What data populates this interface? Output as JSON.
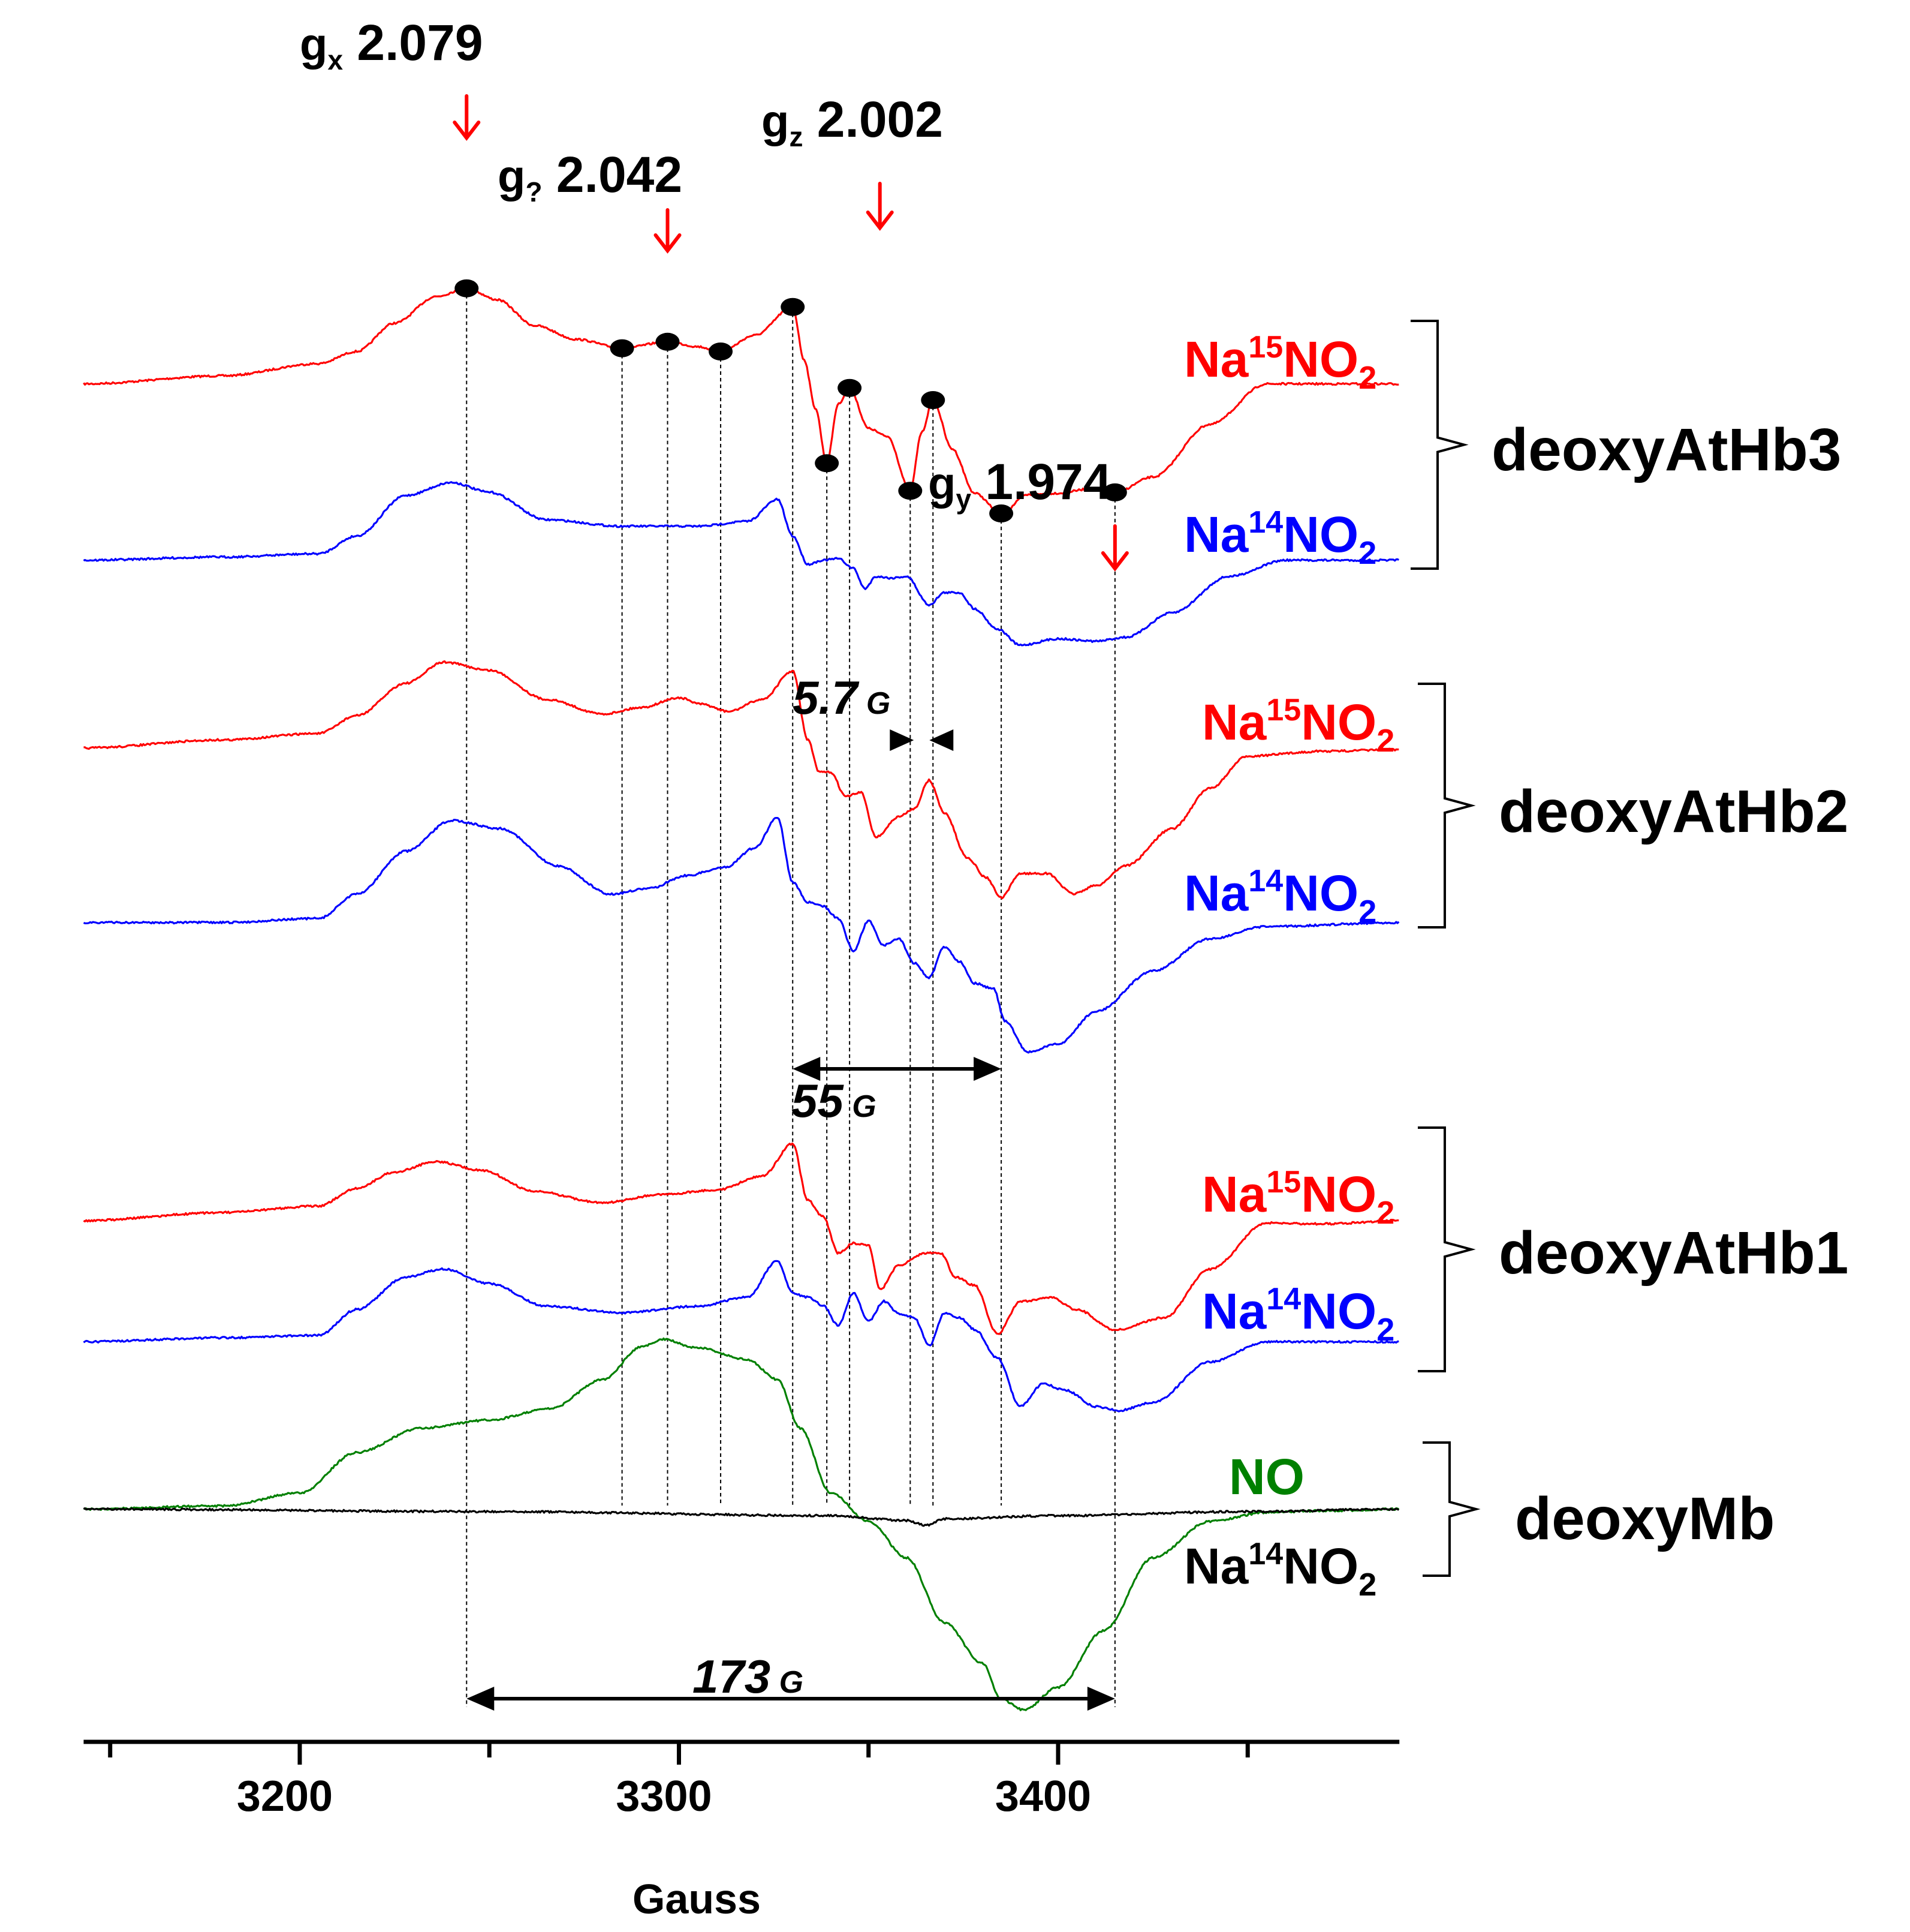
{
  "chart_data": {
    "type": "line",
    "title": "",
    "xlabel": "Gauss",
    "ylabel": "",
    "xlim": [
      3143,
      3490
    ],
    "xticks_major": [
      3200,
      3300,
      3400
    ],
    "xticks_minor": [
      3150,
      3250,
      3350,
      3450
    ],
    "colors": {
      "na15": "#ff0000",
      "na14": "#0000ff",
      "no": "#008000",
      "black": "#000000",
      "arrow": "#ff0000"
    },
    "g_markers": [
      {
        "sym": "g",
        "sub": "x",
        "value": "2.079",
        "field": 3244
      },
      {
        "sym": "g",
        "sub": "?",
        "value": "2.042",
        "field": 3297
      },
      {
        "sym": "g",
        "sub": "z",
        "value": "2.002",
        "field": 3353
      },
      {
        "sym": "g",
        "sub": "y",
        "value": "1.974",
        "field": 3415
      }
    ],
    "guide_lines": [
      3244,
      3285,
      3297,
      3311,
      3330,
      3339,
      3345,
      3361,
      3367,
      3385,
      3415
    ],
    "dots": [
      [
        3244,
        118
      ],
      [
        3285,
        44
      ],
      [
        3297,
        52
      ],
      [
        3311,
        40
      ],
      [
        3330,
        95
      ],
      [
        3339,
        -98
      ],
      [
        3345,
        -5
      ],
      [
        3361,
        -132
      ],
      [
        3367,
        -20
      ],
      [
        3385,
        -160
      ],
      [
        3415,
        -134
      ]
    ],
    "spacings": [
      {
        "number": "5.7",
        "unit": "G",
        "from": 3361,
        "to": 3367
      },
      {
        "number": "55",
        "unit": "G",
        "from": 3330,
        "to": 3385
      },
      {
        "number": "173",
        "unit": "G",
        "from": 3244,
        "to": 3415
      }
    ],
    "traces": [
      {
        "id": "hb3-15",
        "name": "Na15NO2",
        "color": "red",
        "baseline": 0,
        "points": [
          [
            3143,
            0
          ],
          [
            3180,
            10
          ],
          [
            3205,
            25
          ],
          [
            3215,
            40
          ],
          [
            3225,
            75
          ],
          [
            3236,
            108
          ],
          [
            3244,
            118
          ],
          [
            3252,
            104
          ],
          [
            3262,
            72
          ],
          [
            3273,
            55
          ],
          [
            3285,
            44
          ],
          [
            3297,
            52
          ],
          [
            3305,
            46
          ],
          [
            3311,
            40
          ],
          [
            3320,
            60
          ],
          [
            3330,
            95
          ],
          [
            3333,
            30
          ],
          [
            3336,
            -30
          ],
          [
            3339,
            -98
          ],
          [
            3342,
            -25
          ],
          [
            3345,
            -5
          ],
          [
            3350,
            -55
          ],
          [
            3355,
            -65
          ],
          [
            3361,
            -132
          ],
          [
            3364,
            -60
          ],
          [
            3367,
            -20
          ],
          [
            3372,
            -80
          ],
          [
            3378,
            -135
          ],
          [
            3385,
            -160
          ],
          [
            3392,
            -137
          ],
          [
            3400,
            -135
          ],
          [
            3408,
            -130
          ],
          [
            3415,
            -134
          ],
          [
            3425,
            -115
          ],
          [
            3440,
            -50
          ],
          [
            3455,
            0
          ],
          [
            3470,
            0
          ],
          [
            3490,
            0
          ]
        ]
      },
      {
        "id": "hb3-14",
        "name": "Na14NO2",
        "color": "blue",
        "baseline": 0,
        "points": [
          [
            3143,
            0
          ],
          [
            3180,
            4
          ],
          [
            3205,
            8
          ],
          [
            3215,
            30
          ],
          [
            3228,
            80
          ],
          [
            3240,
            96
          ],
          [
            3250,
            84
          ],
          [
            3265,
            50
          ],
          [
            3285,
            42
          ],
          [
            3305,
            42
          ],
          [
            3318,
            48
          ],
          [
            3326,
            75
          ],
          [
            3330,
            30
          ],
          [
            3334,
            -5
          ],
          [
            3338,
            0
          ],
          [
            3342,
            2
          ],
          [
            3346,
            -10
          ],
          [
            3349,
            -35
          ],
          [
            3352,
            -20
          ],
          [
            3356,
            -22
          ],
          [
            3360,
            -20
          ],
          [
            3366,
            -55
          ],
          [
            3370,
            -40
          ],
          [
            3374,
            -40
          ],
          [
            3378,
            -60
          ],
          [
            3384,
            -85
          ],
          [
            3390,
            -105
          ],
          [
            3400,
            -97
          ],
          [
            3410,
            -100
          ],
          [
            3418,
            -95
          ],
          [
            3430,
            -65
          ],
          [
            3445,
            -20
          ],
          [
            3460,
            0
          ],
          [
            3475,
            0
          ],
          [
            3490,
            0
          ]
        ]
      },
      {
        "id": "hb2-15",
        "name": "Na15NO2",
        "color": "red",
        "baseline": 0,
        "points": [
          [
            3143,
            0
          ],
          [
            3180,
            10
          ],
          [
            3205,
            18
          ],
          [
            3215,
            40
          ],
          [
            3228,
            80
          ],
          [
            3238,
            106
          ],
          [
            3250,
            96
          ],
          [
            3265,
            60
          ],
          [
            3280,
            42
          ],
          [
            3290,
            50
          ],
          [
            3300,
            62
          ],
          [
            3306,
            54
          ],
          [
            3313,
            45
          ],
          [
            3322,
            60
          ],
          [
            3330,
            95
          ],
          [
            3334,
            10
          ],
          [
            3337,
            -30
          ],
          [
            3340,
            -30
          ],
          [
            3344,
            -60
          ],
          [
            3348,
            -55
          ],
          [
            3352,
            -110
          ],
          [
            3358,
            -85
          ],
          [
            3362,
            -75
          ],
          [
            3366,
            -40
          ],
          [
            3370,
            -80
          ],
          [
            3376,
            -135
          ],
          [
            3381,
            -160
          ],
          [
            3385,
            -185
          ],
          [
            3390,
            -155
          ],
          [
            3397,
            -155
          ],
          [
            3404,
            -180
          ],
          [
            3410,
            -170
          ],
          [
            3418,
            -145
          ],
          [
            3430,
            -100
          ],
          [
            3440,
            -50
          ],
          [
            3450,
            -10
          ],
          [
            3470,
            -4
          ],
          [
            3490,
            -2
          ]
        ]
      },
      {
        "id": "hb2-14",
        "name": "Na14NO2",
        "color": "blue",
        "baseline": 0,
        "points": [
          [
            3143,
            0
          ],
          [
            3180,
            0
          ],
          [
            3205,
            5
          ],
          [
            3215,
            35
          ],
          [
            3228,
            88
          ],
          [
            3240,
            126
          ],
          [
            3253,
            116
          ],
          [
            3268,
            70
          ],
          [
            3282,
            35
          ],
          [
            3292,
            42
          ],
          [
            3302,
            58
          ],
          [
            3312,
            68
          ],
          [
            3320,
            92
          ],
          [
            3326,
            130
          ],
          [
            3330,
            50
          ],
          [
            3334,
            25
          ],
          [
            3338,
            20
          ],
          [
            3342,
            5
          ],
          [
            3346,
            -35
          ],
          [
            3350,
            2
          ],
          [
            3354,
            -28
          ],
          [
            3358,
            -20
          ],
          [
            3362,
            -50
          ],
          [
            3366,
            -68
          ],
          [
            3370,
            -30
          ],
          [
            3374,
            -48
          ],
          [
            3378,
            -75
          ],
          [
            3383,
            -82
          ],
          [
            3386,
            -122
          ],
          [
            3392,
            -160
          ],
          [
            3400,
            -150
          ],
          [
            3410,
            -110
          ],
          [
            3425,
            -60
          ],
          [
            3440,
            -20
          ],
          [
            3455,
            -5
          ],
          [
            3490,
            0
          ]
        ]
      },
      {
        "id": "hb1-15",
        "name": "Na15NO2",
        "color": "red",
        "baseline": 0,
        "points": [
          [
            3143,
            0
          ],
          [
            3180,
            10
          ],
          [
            3205,
            18
          ],
          [
            3215,
            40
          ],
          [
            3225,
            60
          ],
          [
            3236,
            73
          ],
          [
            3248,
            62
          ],
          [
            3262,
            36
          ],
          [
            3280,
            22
          ],
          [
            3295,
            32
          ],
          [
            3310,
            38
          ],
          [
            3322,
            55
          ],
          [
            3330,
            95
          ],
          [
            3334,
            25
          ],
          [
            3338,
            5
          ],
          [
            3342,
            -40
          ],
          [
            3346,
            -28
          ],
          [
            3350,
            -30
          ],
          [
            3353,
            -85
          ],
          [
            3358,
            -55
          ],
          [
            3365,
            -40
          ],
          [
            3369,
            -40
          ],
          [
            3373,
            -70
          ],
          [
            3378,
            -80
          ],
          [
            3384,
            -140
          ],
          [
            3390,
            -100
          ],
          [
            3398,
            -95
          ],
          [
            3405,
            -110
          ],
          [
            3415,
            -135
          ],
          [
            3428,
            -120
          ],
          [
            3440,
            -60
          ],
          [
            3455,
            -3
          ],
          [
            3470,
            -4
          ],
          [
            3490,
            0
          ]
        ]
      },
      {
        "id": "hb1-14",
        "name": "Na14NO2",
        "color": "blue",
        "baseline": 0,
        "points": [
          [
            3143,
            0
          ],
          [
            3180,
            5
          ],
          [
            3205,
            8
          ],
          [
            3215,
            40
          ],
          [
            3228,
            80
          ],
          [
            3238,
            90
          ],
          [
            3250,
            72
          ],
          [
            3265,
            44
          ],
          [
            3285,
            36
          ],
          [
            3305,
            44
          ],
          [
            3318,
            55
          ],
          [
            3326,
            100
          ],
          [
            3330,
            60
          ],
          [
            3334,
            55
          ],
          [
            3338,
            45
          ],
          [
            3342,
            20
          ],
          [
            3346,
            60
          ],
          [
            3350,
            25
          ],
          [
            3354,
            50
          ],
          [
            3358,
            35
          ],
          [
            3362,
            30
          ],
          [
            3366,
            -5
          ],
          [
            3370,
            35
          ],
          [
            3374,
            30
          ],
          [
            3378,
            15
          ],
          [
            3384,
            -20
          ],
          [
            3390,
            -80
          ],
          [
            3396,
            -52
          ],
          [
            3402,
            -60
          ],
          [
            3410,
            -80
          ],
          [
            3416,
            -85
          ],
          [
            3425,
            -75
          ],
          [
            3440,
            -25
          ],
          [
            3455,
            0
          ],
          [
            3490,
            0
          ]
        ]
      },
      {
        "id": "mb-no",
        "name": "NO",
        "color": "green",
        "baseline": 0,
        "points": [
          [
            3143,
            0
          ],
          [
            3180,
            4
          ],
          [
            3200,
            20
          ],
          [
            3215,
            70
          ],
          [
            3232,
            100
          ],
          [
            3250,
            110
          ],
          [
            3266,
            124
          ],
          [
            3280,
            160
          ],
          [
            3290,
            200
          ],
          [
            3296,
            210
          ],
          [
            3304,
            200
          ],
          [
            3318,
            185
          ],
          [
            3326,
            160
          ],
          [
            3332,
            100
          ],
          [
            3340,
            20
          ],
          [
            3350,
            -15
          ],
          [
            3360,
            -60
          ],
          [
            3370,
            -140
          ],
          [
            3380,
            -190
          ],
          [
            3385,
            -235
          ],
          [
            3391,
            -248
          ],
          [
            3400,
            -220
          ],
          [
            3412,
            -150
          ],
          [
            3425,
            -60
          ],
          [
            3440,
            -15
          ],
          [
            3455,
            -4
          ],
          [
            3470,
            -2
          ],
          [
            3490,
            0
          ]
        ]
      },
      {
        "id": "mb-14",
        "name": "Na14NO2",
        "color": "black",
        "baseline": 0,
        "points": [
          [
            3143,
            0
          ],
          [
            3250,
            -3
          ],
          [
            3340,
            -8
          ],
          [
            3360,
            -14
          ],
          [
            3365,
            -20
          ],
          [
            3370,
            -12
          ],
          [
            3400,
            -8
          ],
          [
            3450,
            -3
          ],
          [
            3490,
            0
          ]
        ]
      }
    ],
    "series_labels": [
      {
        "trace": "hb3-15",
        "prefix": "Na",
        "sup": "15",
        "mid": "NO",
        "sub": "2"
      },
      {
        "trace": "hb3-14",
        "prefix": "Na",
        "sup": "14",
        "mid": "NO",
        "sub": "2"
      },
      {
        "trace": "hb2-15",
        "prefix": "Na",
        "sup": "15",
        "mid": "NO",
        "sub": "2"
      },
      {
        "trace": "hb2-14",
        "prefix": "Na",
        "sup": "14",
        "mid": "NO",
        "sub": "2"
      },
      {
        "trace": "hb1-15",
        "prefix": "Na",
        "sup": "15",
        "mid": "NO",
        "sub": "2"
      },
      {
        "trace": "hb1-14",
        "prefix": "Na",
        "sup": "14",
        "mid": "NO",
        "sub": "2"
      },
      {
        "trace": "mb-no",
        "prefix": "NO",
        "sup": "",
        "mid": "",
        "sub": ""
      },
      {
        "trace": "mb-14",
        "prefix": "Na",
        "sup": "14",
        "mid": "NO",
        "sub": "2"
      }
    ],
    "groups": [
      "deoxyAtHb3",
      "deoxyAtHb2",
      "deoxyAtHb1",
      "deoxyMb"
    ]
  }
}
